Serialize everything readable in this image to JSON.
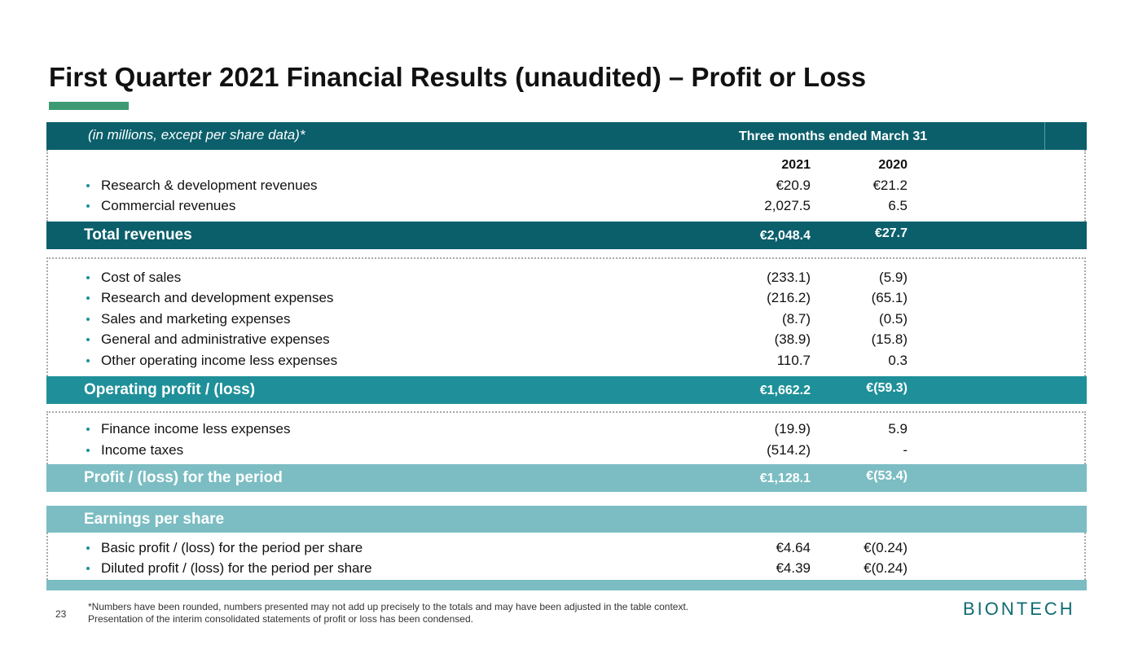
{
  "title": "First Quarter 2021 Financial Results (unaudited) – Profit or Loss",
  "table": {
    "unit_note": "(in millions, except per share data)*",
    "period_header": "Three months ended March 31",
    "years": [
      "2021",
      "2020"
    ],
    "sections": [
      {
        "items": [
          {
            "label": "Research & development revenues",
            "values": [
              "€20.9",
              "€21.2"
            ]
          },
          {
            "label": "Commercial revenues",
            "values": [
              "2,027.5",
              "6.5"
            ]
          }
        ],
        "total": {
          "label": "Total revenues",
          "values": [
            "€2,048.4",
            "€27.7"
          ]
        }
      },
      {
        "items": [
          {
            "label": "Cost of sales",
            "values": [
              "(233.1)",
              "(5.9)"
            ]
          },
          {
            "label": "Research and development expenses",
            "values": [
              "(216.2)",
              "(65.1)"
            ]
          },
          {
            "label": "Sales and marketing expenses",
            "values": [
              "(8.7)",
              "(0.5)"
            ]
          },
          {
            "label": "General and administrative expenses",
            "values": [
              "(38.9)",
              "(15.8)"
            ]
          },
          {
            "label": "Other operating income less expenses",
            "values": [
              "110.7",
              "0.3"
            ]
          }
        ],
        "total": {
          "label": "Operating profit / (loss)",
          "values": [
            "€1,662.2",
            "€(59.3)"
          ]
        }
      },
      {
        "items": [
          {
            "label": "Finance income less expenses",
            "values": [
              "(19.9)",
              "5.9"
            ]
          },
          {
            "label": "Income taxes",
            "values": [
              "(514.2)",
              "-"
            ]
          }
        ],
        "total": {
          "label": "Profit / (loss) for the period",
          "values": [
            "€1,128.1",
            "€(53.4)"
          ]
        }
      },
      {
        "heading": "Earnings per share",
        "items": [
          {
            "label": "Basic profit / (loss) for the period per share",
            "values": [
              "€4.64",
              "€(0.24)"
            ]
          },
          {
            "label": "Diluted profit / (loss) for the period per share",
            "values": [
              "€4.39",
              "€(0.24)"
            ]
          }
        ]
      }
    ]
  },
  "footer": {
    "page": "23",
    "notes": [
      "*Numbers have been rounded, numbers presented may not add up precisely to the totals and may have been adjusted in the table context.",
      "Presentation of the interim consolidated statements of profit or loss has been condensed."
    ],
    "logo": "BIONTECH"
  }
}
